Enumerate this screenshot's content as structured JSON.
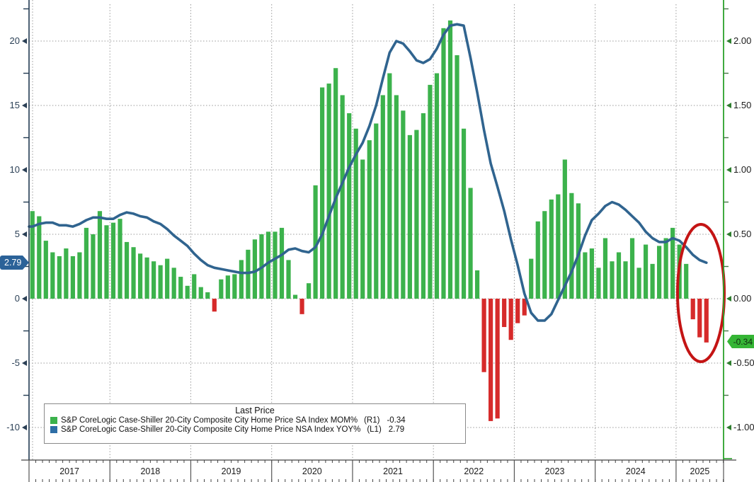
{
  "app": {
    "background": "#ffffff"
  },
  "colors": {
    "bar_positive": "#3cb24c",
    "bar_negative": "#d62a2a",
    "line": "#30648f",
    "left_axis": "#223a52",
    "right_axis": "#2aa02a",
    "gridline": "#999999",
    "annotation_circle": "#c41414",
    "frame": "#444444"
  },
  "legend": {
    "title": "Last Price",
    "series": [
      {
        "swatch_color": "#3cb24c",
        "label": "S&P CoreLogic Case-Shiller 20-City Composite City Home Price SA Index MOM%",
        "axis_code": "(R1)",
        "value": "-0.34"
      },
      {
        "swatch_color": "#2e6ea6",
        "label": "S&P CoreLogic Case-Shiller 20-City Composite City Home Price NSA Index YOY%",
        "axis_code": "(L1)",
        "value": "2.79"
      }
    ]
  },
  "axes": {
    "left": {
      "tick_labels": [
        "20",
        "15",
        "10",
        "5",
        "0",
        "-5",
        "-10"
      ],
      "tick_values": [
        20,
        15,
        10,
        5,
        0,
        -5,
        -10
      ],
      "minor_tick_values": [
        22.5,
        17.5,
        12.5,
        7.5,
        2.5,
        -2.5,
        -7.5
      ],
      "last_price_tag": {
        "text": "2.79",
        "value": 2.79,
        "bg": "#2b6298",
        "text_color": "#ffffff"
      }
    },
    "right": {
      "tick_labels": [
        "2.00",
        "1.50",
        "1.00",
        "0.50",
        "0.00",
        "-0.50",
        "-1.00"
      ],
      "tick_values": [
        2.0,
        1.5,
        1.0,
        0.5,
        0.0,
        -0.5,
        -1.0
      ],
      "minor_tick_values": [
        2.25,
        1.75,
        1.25,
        0.75,
        0.25,
        -0.25,
        -0.75
      ],
      "last_price_tag": {
        "text": "-0.34",
        "value": -0.34,
        "bg": "#35b535",
        "text_color": "#0e2b0e"
      }
    },
    "x": {
      "years": [
        "2017",
        "2018",
        "2019",
        "2020",
        "2021",
        "2022",
        "2023",
        "2024",
        "2025"
      ]
    }
  },
  "annotation": {
    "type": "ellipse",
    "color": "#c41414",
    "cx_value_month": "2025-02",
    "note": "highlight of 2025 rollover in home prices"
  },
  "chart_data": {
    "type": "bar+line",
    "title": "",
    "start_month": "2017-01",
    "end_month": "2025-05",
    "frequency": "monthly",
    "left_axis_range": [
      -12.5,
      23.2
    ],
    "right_axis_range": [
      -1.25,
      2.32
    ],
    "grid": true,
    "legend_position": "bottom-left",
    "series": [
      {
        "name": "S&P CoreLogic Case-Shiller 20-City Composite City Home Price SA Index MOM%",
        "type": "bar",
        "axis": "R1",
        "last": -0.34,
        "values": [
          0.68,
          0.64,
          0.45,
          0.36,
          0.33,
          0.39,
          0.33,
          0.36,
          0.55,
          0.5,
          0.68,
          0.57,
          0.59,
          0.62,
          0.44,
          0.4,
          0.35,
          0.32,
          0.29,
          0.26,
          0.31,
          0.24,
          0.17,
          0.1,
          0.19,
          0.09,
          0.05,
          -0.1,
          0.15,
          0.18,
          0.19,
          0.3,
          0.38,
          0.46,
          0.5,
          0.52,
          0.52,
          0.55,
          0.3,
          0.03,
          -0.12,
          0.12,
          0.88,
          1.64,
          1.67,
          1.79,
          1.58,
          1.44,
          1.32,
          1.08,
          1.23,
          1.36,
          1.58,
          1.75,
          1.58,
          1.46,
          1.27,
          1.31,
          1.44,
          1.66,
          1.75,
          2.1,
          2.16,
          1.89,
          1.32,
          0.86,
          0.22,
          -0.57,
          -0.95,
          -0.93,
          -0.22,
          -0.32,
          -0.19,
          -0.13,
          0.31,
          0.6,
          0.68,
          0.77,
          0.81,
          1.08,
          0.82,
          0.74,
          0.36,
          0.39,
          0.24,
          0.47,
          0.29,
          0.36,
          0.29,
          0.47,
          0.24,
          0.42,
          0.27,
          0.41,
          0.47,
          0.55,
          0.42,
          0.27,
          -0.16,
          -0.3,
          -0.34
        ]
      },
      {
        "name": "S&P CoreLogic Case-Shiller 20-City Composite City Home Price NSA Index YOY%",
        "type": "line",
        "axis": "L1",
        "last": 2.79,
        "values": [
          5.6,
          5.8,
          5.9,
          5.9,
          5.7,
          5.7,
          5.6,
          5.8,
          6.1,
          6.3,
          6.3,
          6.2,
          6.2,
          6.5,
          6.7,
          6.6,
          6.4,
          6.3,
          6.0,
          5.8,
          5.4,
          4.9,
          4.5,
          4.1,
          3.5,
          3.0,
          2.6,
          2.4,
          2.3,
          2.2,
          2.1,
          2.0,
          2.0,
          2.1,
          2.4,
          2.8,
          3.1,
          3.4,
          3.8,
          3.9,
          3.7,
          3.6,
          4.0,
          5.0,
          6.4,
          7.8,
          9.0,
          10.2,
          11.2,
          12.1,
          13.4,
          15.0,
          17.1,
          19.1,
          20.0,
          19.8,
          19.2,
          18.5,
          18.3,
          18.6,
          19.4,
          20.5,
          21.2,
          21.3,
          21.2,
          18.7,
          16.0,
          13.1,
          10.5,
          8.7,
          6.8,
          4.6,
          2.6,
          0.4,
          -1.1,
          -1.7,
          -1.7,
          -1.2,
          -0.1,
          1.0,
          2.1,
          3.4,
          4.9,
          6.1,
          6.6,
          7.2,
          7.5,
          7.3,
          6.9,
          6.4,
          5.9,
          5.2,
          4.7,
          4.4,
          4.4,
          4.7,
          4.5,
          4.0,
          3.4,
          3.0,
          2.79
        ]
      }
    ]
  }
}
